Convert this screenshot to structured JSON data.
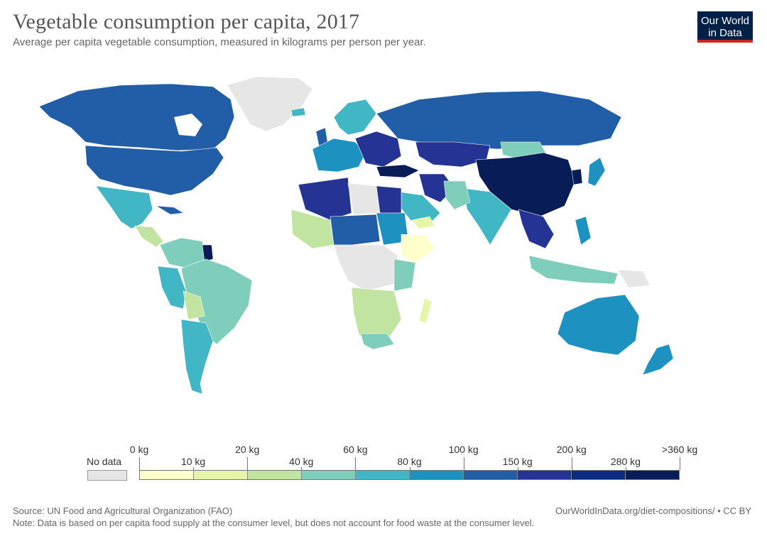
{
  "header": {
    "title": "Vegetable consumption per capita, 2017",
    "subtitle": "Average per capita vegetable consumption, measured in kilograms per person per year."
  },
  "logo": {
    "line1": "Our World",
    "line2": "in Data"
  },
  "legend": {
    "no_data_label": "No data",
    "no_data_color": "#e6e6e6",
    "colors": [
      "#ffffcc",
      "#e6f5a8",
      "#c2e4a1",
      "#7fcdbb",
      "#41b6c4",
      "#1d91c0",
      "#225ea8",
      "#253494",
      "#0c2c84",
      "#081d58"
    ],
    "upper_labels": [
      "0 kg",
      "20 kg",
      "60 kg",
      "100 kg",
      "200 kg",
      ">360 kg"
    ],
    "lower_labels": [
      "10 kg",
      "40 kg",
      "80 kg",
      "150 kg",
      "280 kg"
    ]
  },
  "footer": {
    "source": "Source: UN Food and Agricultural Organization (FAO)",
    "url": "OurWorldInData.org/diet-compositions/ • CC BY",
    "note": "Note: Data is based on per capita food supply at the consumer level, but does not account for food waste at the consumer level."
  }
}
